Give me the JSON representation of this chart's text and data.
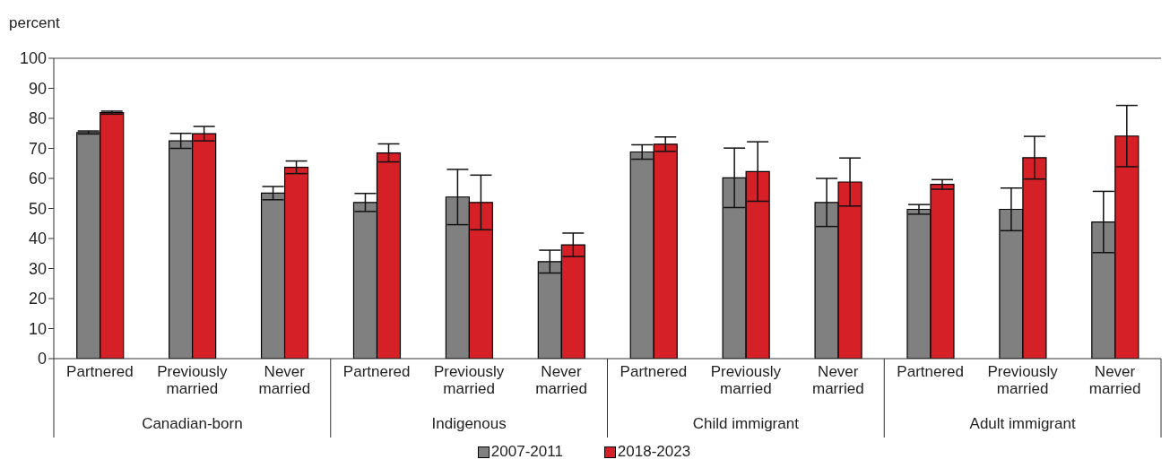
{
  "chart_data": {
    "type": "bar",
    "ylabel": "percent",
    "categories": [
      "Partnered",
      "Previously married",
      "Never married",
      "Partnered",
      "Previously married",
      "Never married",
      "Partnered",
      "Previously married",
      "Never married",
      "Partnered",
      "Previously married",
      "Never married"
    ],
    "annotations": [
      "Canadian-born",
      "Indigenous",
      "Child immigrant",
      "Adult immigrant"
    ],
    "series": [
      {
        "name": "2007-2011",
        "color": "#808080",
        "values": [
          75.3,
          72.5,
          55.1,
          52.0,
          53.8,
          32.3,
          68.8,
          60.2,
          52.0,
          49.7,
          49.7,
          45.5
        ],
        "errors": [
          0.5,
          2.5,
          2.2,
          3.0,
          9.2,
          3.8,
          2.4,
          9.9,
          8.0,
          1.6,
          7.1,
          10.2
        ]
      },
      {
        "name": "2018-2023",
        "color": "#d52027",
        "values": [
          81.9,
          74.9,
          63.7,
          68.5,
          52.0,
          37.9,
          71.4,
          62.3,
          58.8,
          58.0,
          66.9,
          74.1
        ],
        "errors": [
          0.5,
          2.4,
          2.1,
          3.0,
          9.1,
          3.9,
          2.4,
          9.9,
          8.0,
          1.6,
          7.1,
          10.2
        ]
      }
    ],
    "ylim": [
      0,
      100
    ],
    "yticks": [
      0,
      10,
      20,
      30,
      40,
      50,
      60,
      70,
      80,
      90,
      100
    ],
    "grid": false,
    "legend": "bottom"
  }
}
